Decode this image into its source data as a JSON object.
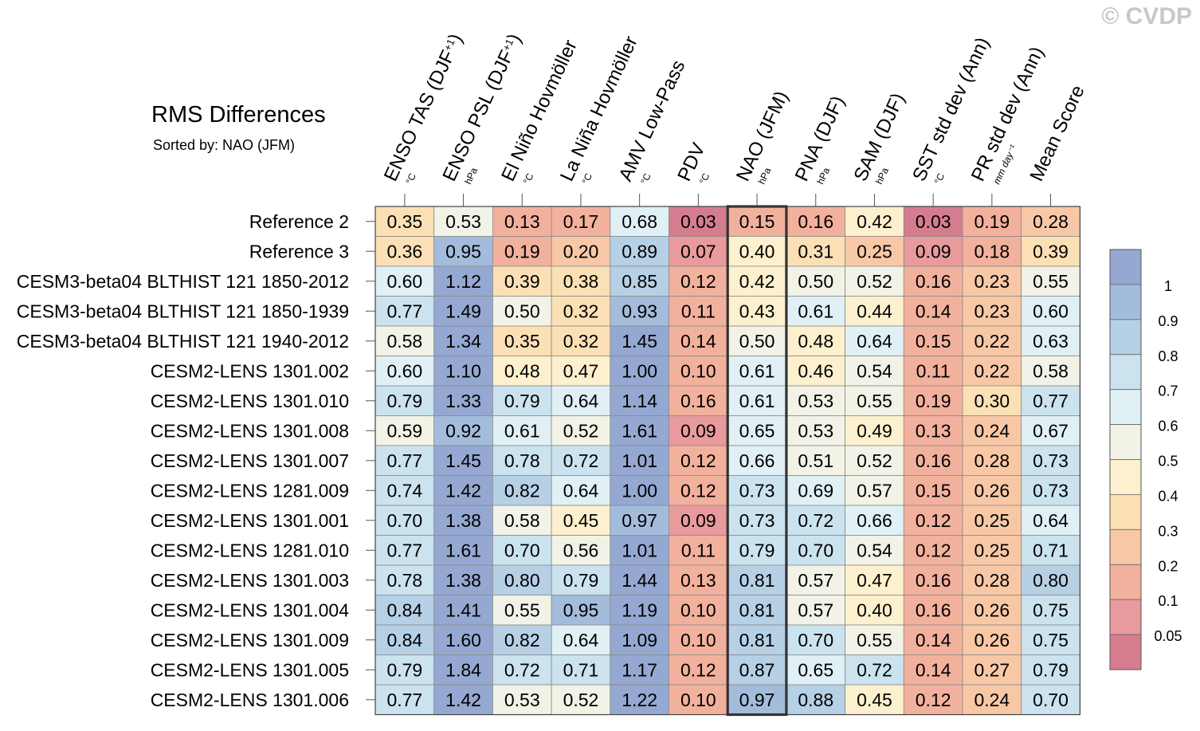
{
  "watermark": "© CVDP",
  "chart_data": {
    "type": "heatmap",
    "title": "RMS Differences",
    "subtitle": "Sorted by: NAO (JFM)",
    "highlight_column": "NAO (JFM)",
    "columns": [
      {
        "label": "ENSO TAS (DJF",
        "sup": "+1",
        "close": ")",
        "unit": "°C"
      },
      {
        "label": "ENSO PSL (DJF",
        "sup": "+1",
        "close": ")",
        "unit": "hPa"
      },
      {
        "label": "El Niño Hovmöller",
        "sup": "",
        "close": "",
        "unit": "°C"
      },
      {
        "label": "La Niña Hovmöller",
        "sup": "",
        "close": "",
        "unit": "°C"
      },
      {
        "label": "AMV Low-Pass",
        "sup": "",
        "close": "",
        "unit": "°C"
      },
      {
        "label": "PDV",
        "sup": "",
        "close": "",
        "unit": "°C"
      },
      {
        "label": "NAO (JFM)",
        "sup": "",
        "close": "",
        "unit": "hPa"
      },
      {
        "label": "PNA (DJF)",
        "sup": "",
        "close": "",
        "unit": "hPa"
      },
      {
        "label": "SAM (DJF)",
        "sup": "",
        "close": "",
        "unit": "hPa"
      },
      {
        "label": "SST std dev (Ann)",
        "sup": "",
        "close": "",
        "unit": "°C"
      },
      {
        "label": "PR std dev (Ann)",
        "sup": "",
        "close": "",
        "unit": "mm day⁻¹"
      },
      {
        "label": "Mean Score",
        "sup": "",
        "close": "",
        "unit": ""
      }
    ],
    "rows": [
      {
        "label": "Reference 2",
        "values": [
          "0.35",
          "0.53",
          "0.13",
          "0.17",
          "0.68",
          "0.03",
          "0.15",
          "0.16",
          "0.42",
          "0.03",
          "0.19",
          "0.28"
        ]
      },
      {
        "label": "Reference 3",
        "values": [
          "0.36",
          "0.95",
          "0.19",
          "0.20",
          "0.89",
          "0.07",
          "0.40",
          "0.31",
          "0.25",
          "0.09",
          "0.18",
          "0.39"
        ]
      },
      {
        "label": "CESM3-beta04 BLTHIST 121 1850-2012",
        "values": [
          "0.60",
          "1.12",
          "0.39",
          "0.38",
          "0.85",
          "0.12",
          "0.42",
          "0.50",
          "0.52",
          "0.16",
          "0.23",
          "0.55"
        ]
      },
      {
        "label": "CESM3-beta04 BLTHIST 121 1850-1939",
        "values": [
          "0.77",
          "1.49",
          "0.50",
          "0.32",
          "0.93",
          "0.11",
          "0.43",
          "0.61",
          "0.44",
          "0.14",
          "0.23",
          "0.60"
        ]
      },
      {
        "label": "CESM3-beta04 BLTHIST 121 1940-2012",
        "values": [
          "0.58",
          "1.34",
          "0.35",
          "0.32",
          "1.45",
          "0.14",
          "0.50",
          "0.48",
          "0.64",
          "0.15",
          "0.22",
          "0.63"
        ]
      },
      {
        "label": "CESM2-LENS 1301.002",
        "values": [
          "0.60",
          "1.10",
          "0.48",
          "0.47",
          "1.00",
          "0.10",
          "0.61",
          "0.46",
          "0.54",
          "0.11",
          "0.22",
          "0.58"
        ]
      },
      {
        "label": "CESM2-LENS 1301.010",
        "values": [
          "0.79",
          "1.33",
          "0.79",
          "0.64",
          "1.14",
          "0.16",
          "0.61",
          "0.53",
          "0.55",
          "0.19",
          "0.30",
          "0.77"
        ]
      },
      {
        "label": "CESM2-LENS 1301.008",
        "values": [
          "0.59",
          "0.92",
          "0.61",
          "0.52",
          "1.61",
          "0.09",
          "0.65",
          "0.53",
          "0.49",
          "0.13",
          "0.24",
          "0.67"
        ]
      },
      {
        "label": "CESM2-LENS 1301.007",
        "values": [
          "0.77",
          "1.45",
          "0.78",
          "0.72",
          "1.01",
          "0.12",
          "0.66",
          "0.51",
          "0.52",
          "0.16",
          "0.28",
          "0.73"
        ]
      },
      {
        "label": "CESM2-LENS 1281.009",
        "values": [
          "0.74",
          "1.42",
          "0.82",
          "0.64",
          "1.00",
          "0.12",
          "0.73",
          "0.69",
          "0.57",
          "0.15",
          "0.26",
          "0.73"
        ]
      },
      {
        "label": "CESM2-LENS 1301.001",
        "values": [
          "0.70",
          "1.38",
          "0.58",
          "0.45",
          "0.97",
          "0.09",
          "0.73",
          "0.72",
          "0.66",
          "0.12",
          "0.25",
          "0.64"
        ]
      },
      {
        "label": "CESM2-LENS 1281.010",
        "values": [
          "0.77",
          "1.61",
          "0.70",
          "0.56",
          "1.01",
          "0.11",
          "0.79",
          "0.70",
          "0.54",
          "0.12",
          "0.25",
          "0.71"
        ]
      },
      {
        "label": "CESM2-LENS 1301.003",
        "values": [
          "0.78",
          "1.38",
          "0.80",
          "0.79",
          "1.44",
          "0.13",
          "0.81",
          "0.57",
          "0.47",
          "0.16",
          "0.28",
          "0.80"
        ]
      },
      {
        "label": "CESM2-LENS 1301.004",
        "values": [
          "0.84",
          "1.41",
          "0.55",
          "0.95",
          "1.19",
          "0.10",
          "0.81",
          "0.57",
          "0.40",
          "0.16",
          "0.26",
          "0.75"
        ]
      },
      {
        "label": "CESM2-LENS 1301.009",
        "values": [
          "0.84",
          "1.60",
          "0.82",
          "0.64",
          "1.09",
          "0.10",
          "0.81",
          "0.70",
          "0.55",
          "0.14",
          "0.26",
          "0.75"
        ]
      },
      {
        "label": "CESM2-LENS 1301.005",
        "values": [
          "0.79",
          "1.84",
          "0.72",
          "0.71",
          "1.17",
          "0.12",
          "0.87",
          "0.65",
          "0.72",
          "0.14",
          "0.27",
          "0.79"
        ]
      },
      {
        "label": "CESM2-LENS 1301.006",
        "values": [
          "0.77",
          "1.42",
          "0.53",
          "0.52",
          "1.22",
          "0.10",
          "0.97",
          "0.88",
          "0.45",
          "0.12",
          "0.24",
          "0.70"
        ]
      }
    ],
    "colorbar": {
      "levels": [
        0.05,
        0.1,
        0.2,
        0.3,
        0.4,
        0.5,
        0.6,
        0.7,
        0.8,
        0.9,
        1
      ],
      "labels": [
        "0.05",
        "0.1",
        "0.2",
        "0.3",
        "0.4",
        "0.5",
        "0.6",
        "0.7",
        "0.8",
        "0.9",
        "1"
      ],
      "colors": [
        "#d57d8f",
        "#e99a9c",
        "#f2b19d",
        "#f8c8a6",
        "#fce0b5",
        "#fdf0ce",
        "#f2f2e6",
        "#e0f0f5",
        "#cbe3ef",
        "#b6d0e5",
        "#a3bcdb",
        "#95a8d1"
      ]
    }
  }
}
